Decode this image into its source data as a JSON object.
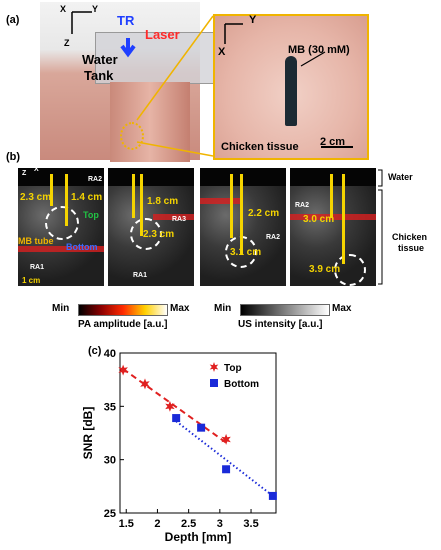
{
  "panels": {
    "a": {
      "label": "(a)"
    },
    "b": {
      "label": "(b)"
    },
    "c": {
      "label": "(c)"
    }
  },
  "photo_setup": {
    "axes": {
      "x": "X",
      "y": "Y",
      "z": "Z"
    },
    "tr_label": "TR",
    "laser_label": "Laser",
    "tank_label_1": "Water",
    "tank_label_2": "Tank"
  },
  "photo_tissue": {
    "axes": {
      "x": "X",
      "y": "Y"
    },
    "mb_label": "MB (30 mM)",
    "tissue_label": "Chicken tissue",
    "scale_label": "2 cm"
  },
  "us_images": {
    "axes": {
      "z": "Z",
      "x": "X"
    },
    "panel1": {
      "d1": "2.3 cm",
      "d2": "1.4 cm",
      "top": "Top",
      "bottom": "Bottom",
      "tube": "MB tube",
      "ra1": "RA1",
      "ra2": "RA2",
      "scale": "1 cm"
    },
    "panel2": {
      "d1": "1.8 cm",
      "d2": "2.3 cm",
      "ra1": "RA1",
      "ra3": "RA3"
    },
    "panel3": {
      "d1": "2.2 cm",
      "d2": "3.1 cm",
      "ra2": "RA2"
    },
    "panel4": {
      "d1": "3.0 cm",
      "d2": "3.9 cm",
      "ra2": "RA2"
    },
    "water_label": "Water",
    "tissue_label_1": "Chicken",
    "tissue_label_2": "tissue"
  },
  "colorbars": {
    "pa": {
      "min": "Min",
      "max": "Max",
      "title": "PA amplitude [a.u.]"
    },
    "us": {
      "min": "Min",
      "max": "Max",
      "title": "US intensity [a.u.]"
    }
  },
  "chart_data": {
    "type": "scatter",
    "title": "",
    "xlabel": "Depth [mm]",
    "ylabel": "SNR [dB]",
    "xlim": [
      1.4,
      3.9
    ],
    "ylim": [
      25,
      40
    ],
    "xticks": [
      1.5,
      2,
      2.5,
      3,
      3.5
    ],
    "yticks": [
      25,
      30,
      35,
      40
    ],
    "legend_position": "top-right",
    "series": [
      {
        "name": "Top",
        "marker": "star",
        "color": "#e02020",
        "line": "dashed",
        "x": [
          1.45,
          1.8,
          2.2,
          3.1
        ],
        "y": [
          38.4,
          37.1,
          35.0,
          31.9
        ]
      },
      {
        "name": "Bottom",
        "marker": "square",
        "color": "#1a2ad8",
        "line": "dotted",
        "x": [
          2.3,
          2.7,
          3.1,
          3.85
        ],
        "y": [
          33.9,
          33.0,
          29.1,
          26.6
        ]
      }
    ],
    "fit_lines": [
      {
        "series": "Top",
        "x": [
          1.45,
          3.1
        ],
        "y": [
          38.5,
          31.6
        ]
      },
      {
        "series": "Bottom",
        "x": [
          2.3,
          3.85
        ],
        "y": [
          33.6,
          26.6
        ]
      }
    ]
  }
}
